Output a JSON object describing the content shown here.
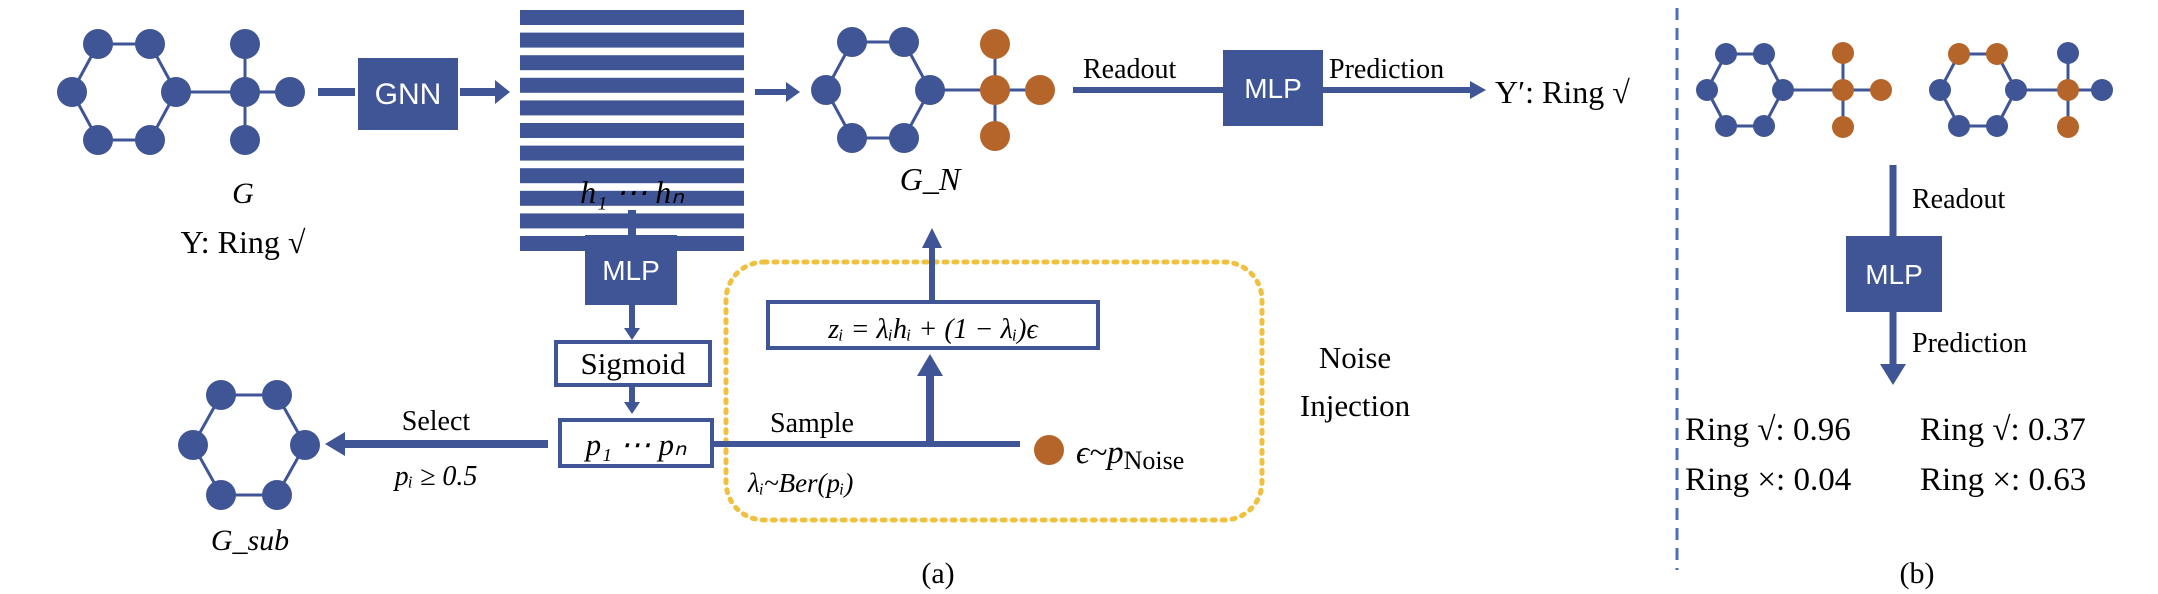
{
  "colors": {
    "node_blue": "#3f5596",
    "node_orange": "#b5652a",
    "box_blue": "#3f5596",
    "noise_border": "#f0c040",
    "text": "#000000",
    "box_text": "#ffffff",
    "divider": "#4a6fc0"
  },
  "part_a": {
    "input_graph": {
      "label": "G",
      "label_target": "Y: Ring √"
    },
    "gnn_box": {
      "label": "GNN"
    },
    "embeddings": {
      "label": "h₁ ⋯ hₙ"
    },
    "noisy_graph": {
      "label": "G_N"
    },
    "readout_label": "Readout",
    "mlp_top": {
      "label": "MLP"
    },
    "prediction_label": "Prediction",
    "prediction_output": "Y′: Ring √",
    "mlp_middle": {
      "label": "MLP"
    },
    "sigmoid_box": {
      "label": "Sigmoid"
    },
    "p_box": {
      "label": "p₁ ⋯ pₙ"
    },
    "select_label": "Select",
    "select_condition": "pᵢ ≥ 0.5",
    "subgraph": {
      "label": "G_sub"
    },
    "sample_label": "Sample",
    "bernoulli_label": "λᵢ~Ber(pᵢ)",
    "z_formula": "zᵢ = λᵢhᵢ + (1 − λᵢ)ϵ",
    "noise_symbol": "ϵ~p",
    "noise_subscript": "Noise",
    "noise_injection_line1": "Noise",
    "noise_injection_line2": "Injection",
    "caption": "(a)"
  },
  "part_b": {
    "readout_label": "Readout",
    "mlp": {
      "label": "MLP"
    },
    "prediction_label": "Prediction",
    "results": [
      [
        "Ring √: 0.96",
        "Ring √: 0.37"
      ],
      [
        "Ring ×: 0.04",
        "Ring ×: 0.63"
      ]
    ],
    "caption": "(b)"
  }
}
